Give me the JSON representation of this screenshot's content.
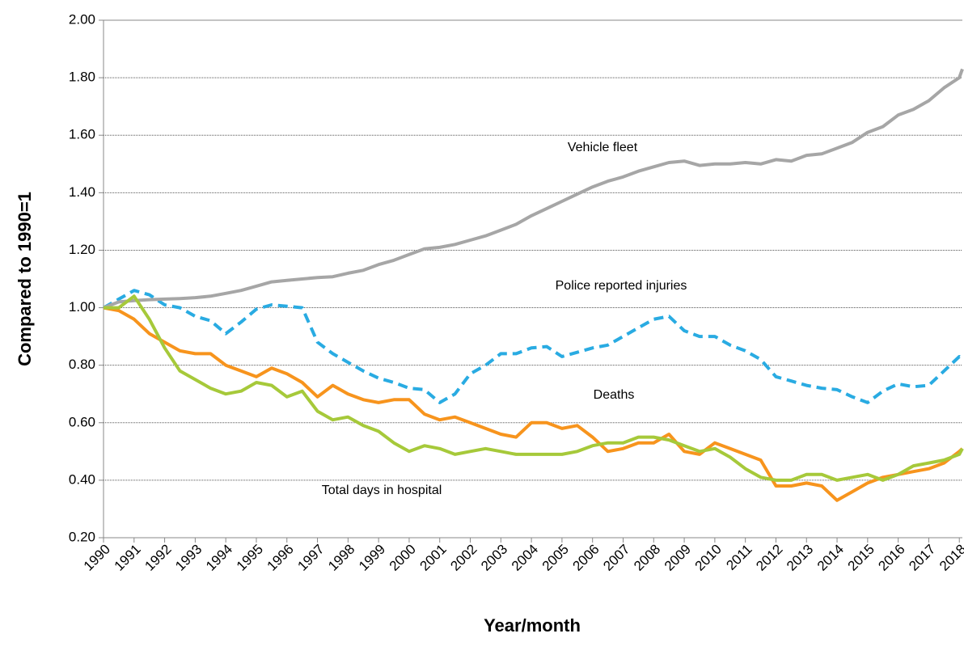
{
  "chart_data": {
    "type": "line",
    "ylabel": "Compared to 1990=1",
    "xlabel": "Year/month",
    "x": [
      1990,
      1990.5,
      1991,
      1991.5,
      1992,
      1992.5,
      1993,
      1993.5,
      1994,
      1994.5,
      1995,
      1995.5,
      1996,
      1996.5,
      1997,
      1997.5,
      1998,
      1998.5,
      1999,
      1999.5,
      2000,
      2000.5,
      2001,
      2001.5,
      2002,
      2002.5,
      2003,
      2003.5,
      2004,
      2004.5,
      2005,
      2005.5,
      2006,
      2006.5,
      2007,
      2007.5,
      2008,
      2008.5,
      2009,
      2009.5,
      2010,
      2010.5,
      2011,
      2011.5,
      2012,
      2012.5,
      2013,
      2013.5,
      2014,
      2014.5,
      2015,
      2015.5,
      2016,
      2016.5,
      2017,
      2017.5,
      2018,
      2018.1
    ],
    "series": [
      {
        "name": "Police reported injuries",
        "color": "#29abe2",
        "dashed": true,
        "values": [
          1.0,
          1.03,
          1.06,
          1.045,
          1.01,
          1.0,
          0.97,
          0.955,
          0.91,
          0.95,
          0.995,
          1.01,
          1.005,
          1.0,
          0.88,
          0.84,
          0.81,
          0.78,
          0.755,
          0.74,
          0.72,
          0.715,
          0.67,
          0.7,
          0.77,
          0.8,
          0.84,
          0.84,
          0.86,
          0.865,
          0.83,
          0.845,
          0.86,
          0.87,
          0.9,
          0.93,
          0.96,
          0.97,
          0.92,
          0.9,
          0.9,
          0.87,
          0.85,
          0.82,
          0.76,
          0.745,
          0.73,
          0.72,
          0.715,
          0.69,
          0.67,
          0.71,
          0.735,
          0.725,
          0.73,
          0.78,
          0.83,
          0.825
        ]
      },
      {
        "name": "Vehicle fleet",
        "color": "#a6a6a6",
        "dashed": false,
        "values": [
          1.0,
          1.02,
          1.025,
          1.028,
          1.03,
          1.032,
          1.035,
          1.04,
          1.05,
          1.06,
          1.075,
          1.09,
          1.095,
          1.1,
          1.105,
          1.108,
          1.12,
          1.13,
          1.15,
          1.165,
          1.185,
          1.205,
          1.21,
          1.22,
          1.235,
          1.25,
          1.27,
          1.29,
          1.32,
          1.345,
          1.37,
          1.395,
          1.42,
          1.44,
          1.455,
          1.475,
          1.49,
          1.505,
          1.51,
          1.495,
          1.5,
          1.5,
          1.505,
          1.5,
          1.515,
          1.51,
          1.53,
          1.535,
          1.555,
          1.575,
          1.61,
          1.63,
          1.67,
          1.69,
          1.72,
          1.765,
          1.8,
          1.83
        ]
      },
      {
        "name": "Deaths",
        "color": "#f7941d",
        "dashed": false,
        "values": [
          1.0,
          0.99,
          0.96,
          0.91,
          0.88,
          0.85,
          0.84,
          0.84,
          0.8,
          0.78,
          0.76,
          0.79,
          0.77,
          0.74,
          0.69,
          0.73,
          0.7,
          0.68,
          0.67,
          0.68,
          0.68,
          0.63,
          0.61,
          0.62,
          0.6,
          0.58,
          0.56,
          0.55,
          0.6,
          0.6,
          0.58,
          0.59,
          0.55,
          0.5,
          0.51,
          0.53,
          0.53,
          0.56,
          0.5,
          0.49,
          0.53,
          0.51,
          0.49,
          0.47,
          0.38,
          0.38,
          0.39,
          0.38,
          0.33,
          0.36,
          0.39,
          0.41,
          0.42,
          0.43,
          0.44,
          0.46,
          0.5,
          0.51
        ]
      },
      {
        "name": "Total days in hospital",
        "color": "#a6c93a",
        "dashed": false,
        "values": [
          1.0,
          1.0,
          1.04,
          0.96,
          0.86,
          0.78,
          0.75,
          0.72,
          0.7,
          0.71,
          0.74,
          0.73,
          0.69,
          0.71,
          0.64,
          0.61,
          0.62,
          0.59,
          0.57,
          0.53,
          0.5,
          0.52,
          0.51,
          0.49,
          0.5,
          0.51,
          0.5,
          0.49,
          0.49,
          0.49,
          0.49,
          0.5,
          0.52,
          0.53,
          0.53,
          0.55,
          0.55,
          0.54,
          0.52,
          0.5,
          0.51,
          0.48,
          0.44,
          0.41,
          0.4,
          0.4,
          0.42,
          0.42,
          0.4,
          0.41,
          0.42,
          0.4,
          0.42,
          0.45,
          0.46,
          0.47,
          0.49,
          0.51
        ]
      }
    ],
    "xlim": [
      1990,
      2018.1
    ],
    "xticks": [
      1990,
      1991,
      1992,
      1993,
      1994,
      1995,
      1996,
      1997,
      1998,
      1999,
      2000,
      2001,
      2002,
      2003,
      2004,
      2005,
      2006,
      2007,
      2008,
      2009,
      2010,
      2011,
      2012,
      2013,
      2014,
      2015,
      2016,
      2017,
      2018
    ],
    "ylim": [
      0.2,
      2.0
    ],
    "yticks": [
      {
        "value": 0.2,
        "label": "0.20"
      },
      {
        "value": 0.4,
        "label": "0.40"
      },
      {
        "value": 0.6,
        "label": "0.60"
      },
      {
        "value": 0.8,
        "label": "0.80"
      },
      {
        "value": 1.0,
        "label": "1.00"
      },
      {
        "value": 1.2,
        "label": "1.20"
      },
      {
        "value": 1.4,
        "label": "1.40"
      },
      {
        "value": 1.6,
        "label": "1.60"
      },
      {
        "value": 1.8,
        "label": "1.80"
      },
      {
        "value": 2.0,
        "label": "2.00"
      }
    ],
    "grid": true
  }
}
